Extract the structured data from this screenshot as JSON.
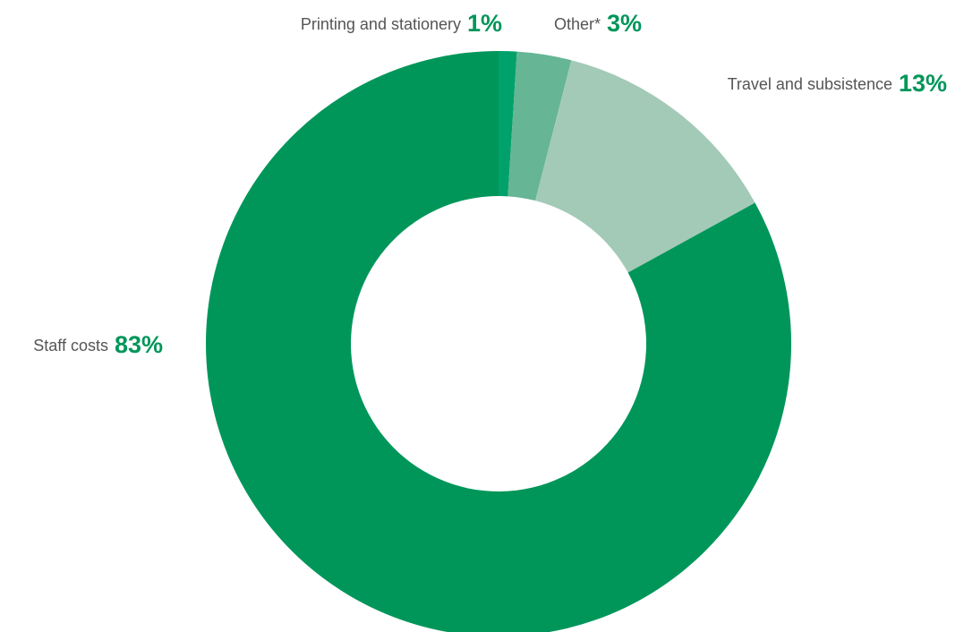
{
  "chart_data": {
    "type": "donut",
    "categories": [
      "Printing and stationery",
      "Other*",
      "Travel and subsistence",
      "Staff costs"
    ],
    "values": [
      1,
      3,
      13,
      83
    ],
    "value_labels": [
      "1%",
      "3%",
      "13%",
      "83%"
    ],
    "colors": [
      "#00a16a",
      "#66b594",
      "#a3cab7",
      "#00965a"
    ]
  }
}
